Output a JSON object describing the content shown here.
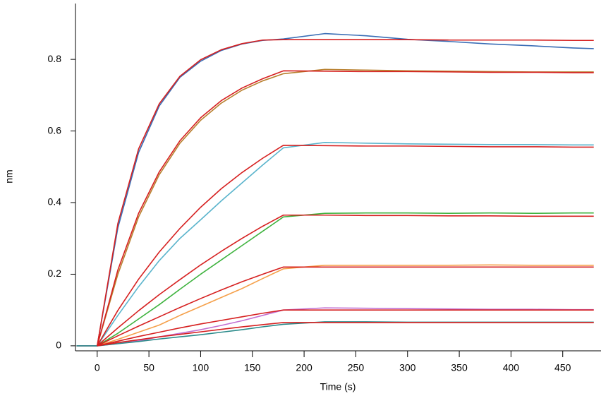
{
  "chart_data": {
    "type": "line",
    "xlabel": "Time (s)",
    "ylabel": "nm",
    "x": [
      -20,
      0,
      20,
      40,
      60,
      80,
      100,
      120,
      140,
      160,
      180,
      220,
      260,
      300,
      340,
      380,
      420,
      460,
      480
    ],
    "xlim": [
      -21,
      487
    ],
    "ylim": [
      -0.014,
      0.956
    ],
    "xticks": [
      0,
      50,
      100,
      150,
      200,
      250,
      300,
      350,
      400,
      450
    ],
    "yticks": [
      0,
      0.2,
      0.4,
      0.6,
      0.8
    ],
    "series": [
      {
        "color": "#3a6db5",
        "values": [
          0,
          0,
          0.33,
          0.54,
          0.67,
          0.75,
          0.795,
          0.825,
          0.843,
          0.853,
          0.857,
          0.872,
          0.866,
          0.856,
          0.85,
          0.843,
          0.838,
          0.832,
          0.83
        ]
      },
      {
        "color": "#b8802e",
        "values": [
          0,
          0,
          0.2,
          0.36,
          0.478,
          0.566,
          0.63,
          0.678,
          0.714,
          0.74,
          0.76,
          0.772,
          0.77,
          0.768,
          0.767,
          0.766,
          0.765,
          0.765,
          0.765
        ]
      },
      {
        "color": "#5ab4cc",
        "values": [
          0,
          0,
          0.085,
          0.165,
          0.238,
          0.3,
          0.352,
          0.405,
          0.455,
          0.505,
          0.553,
          0.568,
          0.566,
          0.564,
          0.563,
          0.562,
          0.562,
          0.561,
          0.561
        ]
      },
      {
        "color": "#3fb33f",
        "values": [
          0,
          0,
          0.035,
          0.075,
          0.115,
          0.158,
          0.2,
          0.24,
          0.28,
          0.32,
          0.36,
          0.37,
          0.371,
          0.371,
          0.37,
          0.371,
          0.37,
          0.371,
          0.371
        ]
      },
      {
        "color": "#f5a04a",
        "values": [
          0,
          0,
          0.018,
          0.038,
          0.058,
          0.085,
          0.11,
          0.135,
          0.16,
          0.188,
          0.215,
          0.225,
          0.225,
          0.225,
          0.225,
          0.226,
          0.225,
          0.225,
          0.225
        ]
      },
      {
        "color": "#c270d2",
        "values": [
          0,
          0,
          0.006,
          0.014,
          0.025,
          0.035,
          0.045,
          0.057,
          0.07,
          0.085,
          0.1,
          0.106,
          0.105,
          0.104,
          0.103,
          0.102,
          0.102,
          0.101,
          0.101
        ]
      },
      {
        "color": "#2a8a8a",
        "values": [
          0,
          0,
          0.006,
          0.012,
          0.019,
          0.025,
          0.031,
          0.038,
          0.045,
          0.053,
          0.06,
          0.067,
          0.067,
          0.066,
          0.066,
          0.066,
          0.066,
          0.066,
          0.066
        ]
      },
      {
        "color": "#d62020",
        "values": [
          null,
          0,
          0.342,
          0.55,
          0.676,
          0.753,
          0.799,
          0.827,
          0.844,
          0.854,
          0.855,
          0.855,
          0.855,
          0.855,
          0.854,
          0.854,
          0.854,
          0.853,
          0.853
        ]
      },
      {
        "color": "#d62020",
        "values": [
          null,
          0,
          0.212,
          0.37,
          0.486,
          0.573,
          0.637,
          0.685,
          0.72,
          0.746,
          0.768,
          0.767,
          0.766,
          0.766,
          0.765,
          0.764,
          0.764,
          0.763,
          0.763
        ]
      },
      {
        "color": "#d62020",
        "values": [
          null,
          0,
          0.099,
          0.186,
          0.262,
          0.328,
          0.387,
          0.439,
          0.484,
          0.524,
          0.56,
          0.559,
          0.558,
          0.558,
          0.557,
          0.556,
          0.556,
          0.555,
          0.555
        ]
      },
      {
        "color": "#d62020",
        "values": [
          null,
          0,
          0.05,
          0.098,
          0.143,
          0.185,
          0.226,
          0.264,
          0.3,
          0.334,
          0.365,
          0.365,
          0.364,
          0.364,
          0.363,
          0.363,
          0.362,
          0.362,
          0.362
        ]
      },
      {
        "color": "#d62020",
        "values": [
          null,
          0,
          0.028,
          0.055,
          0.081,
          0.107,
          0.132,
          0.156,
          0.179,
          0.2,
          0.22,
          0.22,
          0.22,
          0.22,
          0.22,
          0.22,
          0.22,
          0.22,
          0.22
        ]
      },
      {
        "color": "#d62020",
        "values": [
          null,
          0,
          0.013,
          0.026,
          0.038,
          0.05,
          0.061,
          0.071,
          0.081,
          0.091,
          0.1,
          0.1,
          0.1,
          0.1,
          0.1,
          0.1,
          0.1,
          0.1,
          0.1
        ]
      },
      {
        "color": "#d62020",
        "values": [
          null,
          0,
          0.009,
          0.017,
          0.025,
          0.032,
          0.039,
          0.046,
          0.053,
          0.059,
          0.065,
          0.065,
          0.065,
          0.065,
          0.065,
          0.065,
          0.065,
          0.065,
          0.065
        ]
      }
    ]
  }
}
